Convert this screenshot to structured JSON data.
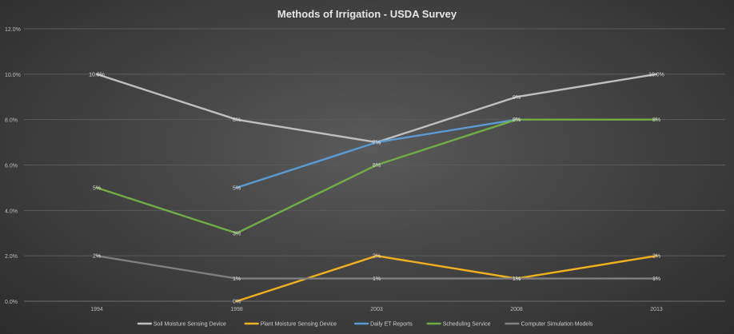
{
  "chart_data": {
    "type": "line",
    "title": "Methods of Irrigation - USDA Survey",
    "categories": [
      "1994",
      "1998",
      "2003",
      "2008",
      "2013"
    ],
    "y_ticks": [
      "0.0%",
      "2.0%",
      "4.0%",
      "6.0%",
      "8.0%",
      "10.0%",
      "12.0%"
    ],
    "ylim": [
      0,
      12
    ],
    "grid": true,
    "legend_position": "bottom",
    "series": [
      {
        "name": "Soil Moisture Sensing Device",
        "color": "#bfbfbf",
        "values": [
          10,
          8,
          7,
          9,
          10
        ],
        "labels": [
          "10.0%",
          "8%",
          "7%",
          "9%",
          "10.0%"
        ]
      },
      {
        "name": "Plant Moisture Sensing Device",
        "color": "#f2b01e",
        "values": [
          null,
          0,
          2,
          1,
          2
        ],
        "labels": [
          null,
          "0%",
          "2%",
          "1%",
          "2%"
        ]
      },
      {
        "name": "Daily ET Reports",
        "color": "#5b9bd5",
        "values": [
          null,
          5,
          7,
          8,
          null
        ],
        "labels": [
          null,
          "5%",
          "7%",
          "8%",
          null
        ]
      },
      {
        "name": "Scheduling Service",
        "color": "#70ad47",
        "values": [
          5,
          3,
          6,
          8,
          8
        ],
        "labels": [
          "5%",
          "3%",
          "6%",
          "8%",
          "8%"
        ]
      },
      {
        "name": "Computer Simulation Models",
        "color": "#7f7f7f",
        "values": [
          2,
          1,
          1,
          1,
          1
        ],
        "labels": [
          "2%",
          "1%",
          "1%",
          "1%",
          "1%"
        ]
      }
    ]
  }
}
